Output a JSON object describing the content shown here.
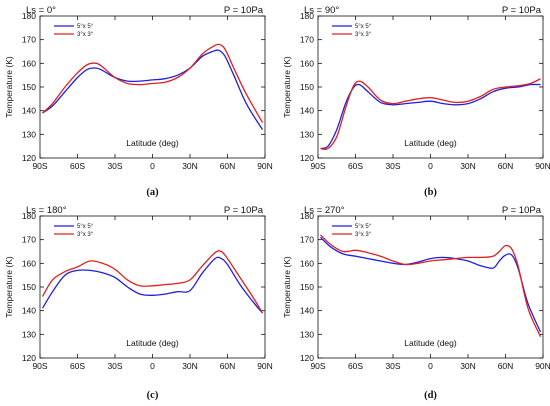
{
  "chart_data": [
    {
      "type": "line",
      "title_left": "Ls = 0°",
      "title_right": "P = 10Pa",
      "caption": "(a)",
      "xlabel": "Latitude (deg)",
      "ylabel": "Temperature (K)",
      "xlim": [
        -90,
        90
      ],
      "ylim": [
        120,
        180
      ],
      "xticks": [
        -90,
        -60,
        -30,
        0,
        30,
        60,
        90
      ],
      "xtick_labels": [
        "90S",
        "60S",
        "30S",
        "0",
        "30N",
        "60N",
        "90N"
      ],
      "yticks": [
        120,
        130,
        140,
        150,
        160,
        170,
        180
      ],
      "legend_position": "top-left",
      "series": [
        {
          "name": "5°x 5°",
          "color": "#1f1fe0",
          "x": [
            -88,
            -80,
            -70,
            -60,
            -52,
            -45,
            -40,
            -30,
            -20,
            -10,
            0,
            10,
            20,
            30,
            40,
            48,
            53,
            58,
            65,
            75,
            88
          ],
          "y": [
            139,
            142,
            148,
            154,
            157.5,
            158,
            157,
            154,
            152.5,
            152.5,
            153,
            153.5,
            155,
            158,
            163,
            165,
            165.5,
            163,
            155,
            143,
            132
          ]
        },
        {
          "name": "3°x 3°",
          "color": "#e02020",
          "x": [
            -88,
            -80,
            -70,
            -60,
            -52,
            -45,
            -40,
            -30,
            -20,
            -10,
            0,
            10,
            20,
            30,
            40,
            48,
            53,
            58,
            65,
            75,
            88
          ],
          "y": [
            139,
            143,
            150,
            156,
            159.5,
            160,
            158.5,
            154,
            151.5,
            151,
            151.5,
            152,
            154,
            158,
            164,
            167,
            168,
            166,
            158,
            147,
            135
          ]
        }
      ]
    },
    {
      "type": "line",
      "title_left": "Ls = 90°",
      "title_right": "P = 10Pa",
      "caption": "(b)",
      "xlabel": "Latitude (deg)",
      "ylabel": "Temperature (K)",
      "xlim": [
        -90,
        90
      ],
      "ylim": [
        120,
        180
      ],
      "xticks": [
        -90,
        -60,
        -30,
        0,
        30,
        60,
        90
      ],
      "xtick_labels": [
        "90S",
        "60S",
        "30S",
        "0",
        "30N",
        "60N",
        "90N"
      ],
      "yticks": [
        120,
        130,
        140,
        150,
        160,
        170,
        180
      ],
      "legend_position": "top-left",
      "series": [
        {
          "name": "5°x 5°",
          "color": "#1f1fe0",
          "x": [
            -88,
            -82,
            -75,
            -68,
            -62,
            -57,
            -50,
            -40,
            -30,
            -20,
            -10,
            0,
            10,
            20,
            30,
            40,
            50,
            60,
            70,
            80,
            88
          ],
          "y": [
            124,
            125,
            132,
            143,
            149.5,
            151,
            148,
            143.5,
            142.5,
            143,
            143.5,
            144,
            143,
            142.5,
            143,
            145,
            148,
            149.5,
            150,
            151,
            151
          ]
        },
        {
          "name": "3°x 3°",
          "color": "#e02020",
          "x": [
            -88,
            -82,
            -75,
            -68,
            -62,
            -57,
            -50,
            -40,
            -30,
            -20,
            -10,
            0,
            10,
            20,
            30,
            40,
            50,
            60,
            70,
            80,
            88
          ],
          "y": [
            124,
            124,
            129,
            141,
            150,
            152.5,
            150,
            144.5,
            143,
            144,
            145,
            145.5,
            144.5,
            143.5,
            144,
            146,
            149,
            150,
            150.5,
            151.5,
            153.5
          ]
        }
      ]
    },
    {
      "type": "line",
      "title_left": "Ls = 180°",
      "title_right": "P = 10Pa",
      "caption": "(c)",
      "xlabel": "Latitude (deg)",
      "ylabel": "Temperature (K)",
      "xlim": [
        -90,
        90
      ],
      "ylim": [
        120,
        180
      ],
      "xticks": [
        -90,
        -60,
        -30,
        0,
        30,
        60,
        90
      ],
      "xtick_labels": [
        "90S",
        "60S",
        "30S",
        "0",
        "30N",
        "60N",
        "90N"
      ],
      "yticks": [
        120,
        130,
        140,
        150,
        160,
        170,
        180
      ],
      "legend_position": "top-left",
      "series": [
        {
          "name": "5°x 5°",
          "color": "#1f1fe0",
          "x": [
            -88,
            -80,
            -70,
            -60,
            -50,
            -40,
            -30,
            -20,
            -10,
            0,
            10,
            20,
            30,
            40,
            50,
            55,
            60,
            70,
            80,
            88
          ],
          "y": [
            141,
            148,
            155,
            157,
            157,
            156,
            154,
            150,
            147,
            146.5,
            147,
            148,
            148.5,
            156,
            162,
            162,
            159.5,
            151,
            144,
            139
          ]
        },
        {
          "name": "3°x 3°",
          "color": "#e02020",
          "x": [
            -88,
            -80,
            -70,
            -60,
            -50,
            -40,
            -30,
            -20,
            -10,
            0,
            10,
            20,
            30,
            40,
            50,
            55,
            60,
            70,
            80,
            88
          ],
          "y": [
            146,
            153,
            156.5,
            158.5,
            161,
            160,
            157.5,
            153,
            150.5,
            150.5,
            151,
            151.5,
            153,
            159,
            164.5,
            165,
            162,
            154,
            146,
            139
          ]
        }
      ]
    },
    {
      "type": "line",
      "title_left": "Ls = 270°",
      "title_right": "P = 10Pa",
      "caption": "(d)",
      "xlabel": "Latitude (deg)",
      "ylabel": "Temperature (K)",
      "xlim": [
        -90,
        90
      ],
      "ylim": [
        120,
        180
      ],
      "xticks": [
        -90,
        -60,
        -30,
        0,
        30,
        60,
        90
      ],
      "xtick_labels": [
        "90S",
        "60S",
        "30S",
        "0",
        "30N",
        "60N",
        "90N"
      ],
      "yticks": [
        120,
        130,
        140,
        150,
        160,
        170,
        180
      ],
      "legend_position": "top-left",
      "series": [
        {
          "name": "5°x 5°",
          "color": "#1f1fe0",
          "x": [
            -88,
            -80,
            -70,
            -60,
            -50,
            -40,
            -30,
            -20,
            -10,
            0,
            10,
            20,
            30,
            40,
            50,
            55,
            60,
            65,
            70,
            78,
            88
          ],
          "y": [
            171,
            167,
            164,
            163,
            162,
            161,
            160,
            159.5,
            160.5,
            162,
            162.5,
            162,
            161,
            159,
            158,
            161,
            163.5,
            163.5,
            158,
            143,
            131
          ]
        },
        {
          "name": "3°x 3°",
          "color": "#e02020",
          "x": [
            -88,
            -80,
            -70,
            -60,
            -50,
            -40,
            -30,
            -20,
            -10,
            0,
            10,
            20,
            30,
            40,
            50,
            55,
            60,
            65,
            70,
            78,
            88
          ],
          "y": [
            172,
            168,
            165,
            165.5,
            164.5,
            163,
            161,
            159.5,
            160,
            161,
            161.5,
            162,
            162.5,
            162.5,
            163,
            165,
            167.5,
            166,
            159,
            141,
            129
          ]
        }
      ]
    }
  ]
}
